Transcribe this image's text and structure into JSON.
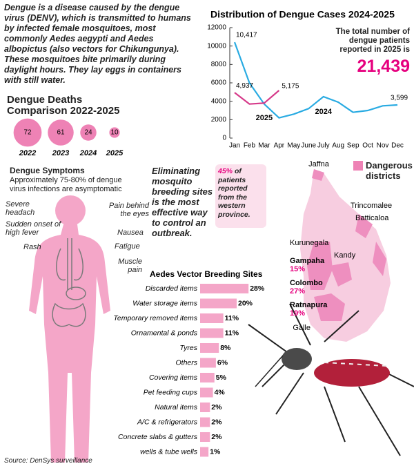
{
  "intro": "Dengue is a disease caused by the dengue virus (DENV), which is transmitted to humans by infected female mosquitoes, most commonly Aedes  aegypti and Aedes albopictus (also vectors for Chikungunya). These mosquitoes bite primarily during daylight hours. They lay eggs in containers with still water.",
  "chart_data": [
    {
      "type": "line",
      "title": "Distribution of Dengue Cases 2024-2025",
      "categories": [
        "Jan",
        "Feb",
        "Mar",
        "Apr",
        "May",
        "June",
        "July",
        "Aug",
        "Sep",
        "Oct",
        "Nov",
        "Dec"
      ],
      "series": [
        {
          "name": "2024",
          "color": "#29abe2",
          "values": [
            10417,
            6000,
            3700,
            2200,
            2600,
            3200,
            4500,
            3900,
            2800,
            3000,
            3500,
            3599
          ],
          "value_labels": [
            "10,417",
            null,
            null,
            null,
            null,
            null,
            null,
            null,
            null,
            null,
            null,
            "3,599"
          ]
        },
        {
          "name": "2025",
          "color": "#d63a8a",
          "values": [
            4937,
            3700,
            3800,
            5175,
            null,
            null,
            null,
            null,
            null,
            null,
            null,
            null
          ],
          "value_labels": [
            "4,937",
            null,
            null,
            "5,175",
            null,
            null,
            null,
            null,
            null,
            null,
            null,
            null
          ]
        }
      ],
      "ylim": [
        0,
        12000
      ],
      "yticks": [
        0,
        2000,
        4000,
        6000,
        8000,
        10000,
        12000
      ],
      "annotation": "The total number of dengue patients reported in 2025 is",
      "annotation_value": "21,439"
    },
    {
      "type": "bubble",
      "title": "Dengue Deaths Comparison 2022-2025",
      "categories": [
        "2022",
        "2023",
        "2024",
        "2025"
      ],
      "values": [
        72,
        61,
        24,
        10
      ],
      "color": "#ee82b5"
    },
    {
      "type": "hbar",
      "title": "Aedes Vector Breeding Sites",
      "categories": [
        "Discarded items",
        "Water storage items",
        "Temporary removed items",
        "Ornamental & ponds",
        "Tyres",
        "Others",
        "Covering items",
        "Pet feeding cups",
        "Natural items",
        "A/C & refrigerators",
        "Concrete slabs & gutters",
        "wells & tube wells"
      ],
      "values": [
        28,
        20,
        11,
        11,
        8,
        6,
        5,
        4,
        2,
        2,
        2,
        1
      ],
      "value_labels": [
        "28%",
        "20%",
        "11%",
        "11%",
        "8%",
        "6%",
        "5%",
        "4%",
        "2%",
        "2%",
        "2%",
        "1%"
      ],
      "color": "#f4a6c8"
    }
  ],
  "symptoms": {
    "title": "Dengue Symptoms",
    "note": "Approximately 75-80% of dengue virus infections are asymptomatic",
    "labels": [
      "Severe headach",
      "Pain behind the eyes",
      "Sudden onset of high fever",
      "Nausea",
      "Rash",
      "Fatigue",
      "Muscle pain"
    ]
  },
  "message": "Eliminating mosquito breeding sites is the most effective way to control an outbreak.",
  "western": {
    "pct": "45%",
    "text": "of patients reported from the western province."
  },
  "map": {
    "legend": "Dangerous districts",
    "districts": [
      {
        "name": "Jaffna"
      },
      {
        "name": "Trincomalee"
      },
      {
        "name": "Batticaloa"
      },
      {
        "name": "Kurunegala"
      },
      {
        "name": "Kandy"
      },
      {
        "name": "Gampaha",
        "share": "15%"
      },
      {
        "name": "Colombo",
        "share": "27%"
      },
      {
        "name": "Ratnapura",
        "share": "19%"
      },
      {
        "name": "Galle"
      }
    ]
  },
  "source": "Source: DenSys surveillance"
}
